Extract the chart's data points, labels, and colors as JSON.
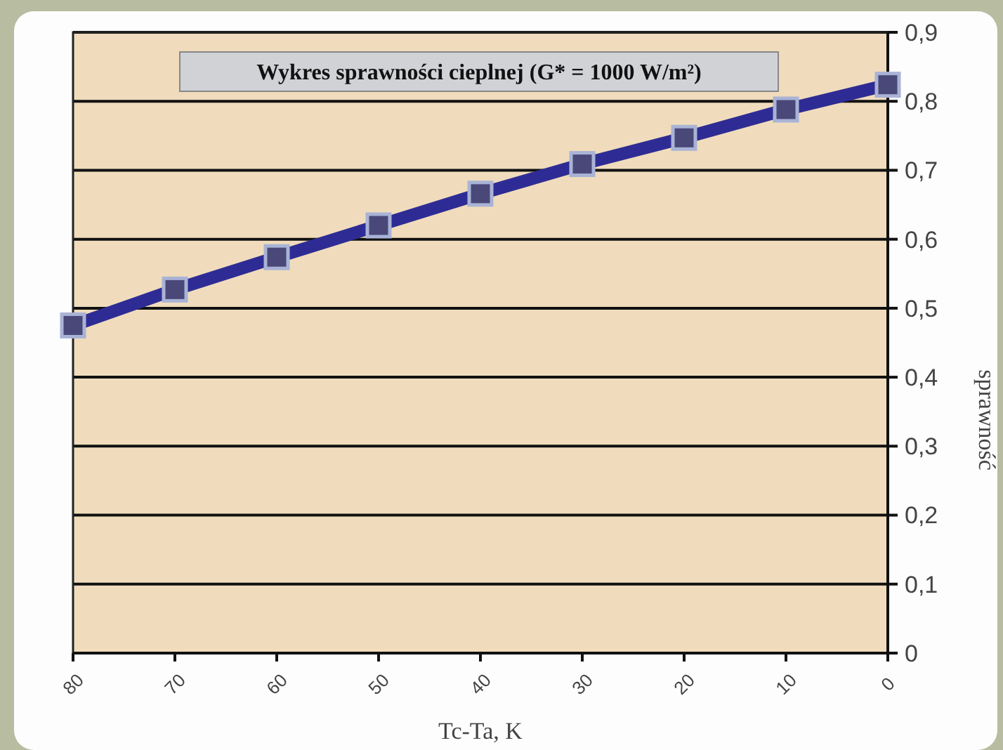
{
  "chart_data": {
    "type": "line",
    "title": "Wykres sprawności cieplnej (G* = 1000 W/m²)",
    "xlabel": "Tc-Ta, K",
    "ylabel": "sprawność",
    "x": [
      80,
      70,
      60,
      50,
      40,
      30,
      20,
      10,
      0
    ],
    "series": [
      {
        "color": "#2e2c94",
        "values": [
          0.475,
          0.527,
          0.574,
          0.62,
          0.666,
          0.709,
          0.747,
          0.788,
          0.824
        ]
      }
    ],
    "xlim": [
      80,
      0
    ],
    "xticks": [
      80,
      70,
      60,
      50,
      40,
      30,
      20,
      10,
      0
    ],
    "ylim": [
      0,
      0.9
    ],
    "yticks": [
      {
        "value": 0,
        "label": "0"
      },
      {
        "value": 0.1,
        "label": "0,1"
      },
      {
        "value": 0.2,
        "label": "0,2"
      },
      {
        "value": 0.3,
        "label": "0,3"
      },
      {
        "value": 0.4,
        "label": "0,4"
      },
      {
        "value": 0.5,
        "label": "0,5"
      },
      {
        "value": 0.6,
        "label": "0,6"
      },
      {
        "value": 0.7,
        "label": "0,7"
      },
      {
        "value": 0.8,
        "label": "0,8"
      },
      {
        "value": 0.9,
        "label": "0,9"
      }
    ],
    "grid": "y",
    "marker": "square",
    "line_style": "solid"
  }
}
